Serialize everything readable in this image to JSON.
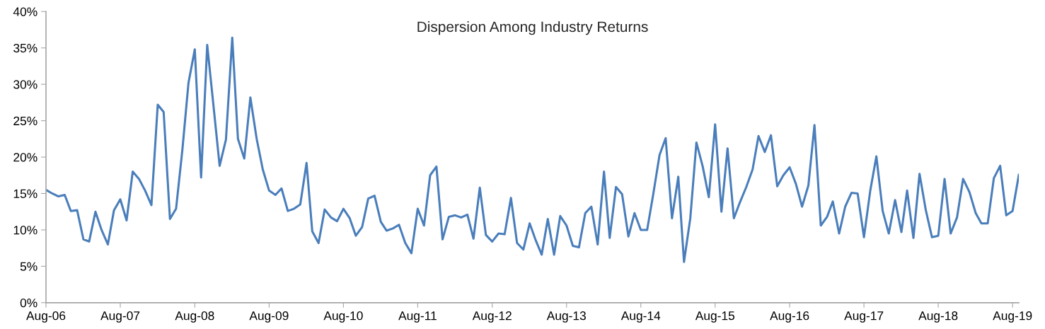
{
  "chart_data": {
    "type": "line",
    "title": "Dispersion Among Industry Returns",
    "x": [
      "2006-08",
      "2006-09",
      "2006-10",
      "2006-11",
      "2006-12",
      "2007-01",
      "2007-02",
      "2007-03",
      "2007-04",
      "2007-05",
      "2007-06",
      "2007-07",
      "2007-08",
      "2007-09",
      "2007-10",
      "2007-11",
      "2007-12",
      "2008-01",
      "2008-02",
      "2008-03",
      "2008-04",
      "2008-05",
      "2008-06",
      "2008-07",
      "2008-08",
      "2008-09",
      "2008-10",
      "2008-11",
      "2008-12",
      "2009-01",
      "2009-02",
      "2009-03",
      "2009-04",
      "2009-05",
      "2009-06",
      "2009-07",
      "2009-08",
      "2009-09",
      "2009-10",
      "2009-11",
      "2009-12",
      "2010-01",
      "2010-02",
      "2010-03",
      "2010-04",
      "2010-05",
      "2010-06",
      "2010-07",
      "2010-08",
      "2010-09",
      "2010-10",
      "2010-11",
      "2010-12",
      "2011-01",
      "2011-02",
      "2011-03",
      "2011-04",
      "2011-05",
      "2011-06",
      "2011-07",
      "2011-08",
      "2011-09",
      "2011-10",
      "2011-11",
      "2011-12",
      "2012-01",
      "2012-02",
      "2012-03",
      "2012-04",
      "2012-05",
      "2012-06",
      "2012-07",
      "2012-08",
      "2012-09",
      "2012-10",
      "2012-11",
      "2012-12",
      "2013-01",
      "2013-02",
      "2013-03",
      "2013-04",
      "2013-05",
      "2013-06",
      "2013-07",
      "2013-08",
      "2013-09",
      "2013-10",
      "2013-11",
      "2013-12",
      "2014-01",
      "2014-02",
      "2014-03",
      "2014-04",
      "2014-05",
      "2014-06",
      "2014-07",
      "2014-08",
      "2014-09",
      "2014-10",
      "2014-11",
      "2014-12",
      "2015-01",
      "2015-02",
      "2015-03",
      "2015-04",
      "2015-05",
      "2015-06",
      "2015-07",
      "2015-08",
      "2015-09",
      "2015-10",
      "2015-11",
      "2015-12",
      "2016-01",
      "2016-02",
      "2016-03",
      "2016-04",
      "2016-05",
      "2016-06",
      "2016-07",
      "2016-08",
      "2016-09",
      "2016-10",
      "2016-11",
      "2016-12",
      "2017-01",
      "2017-02",
      "2017-03",
      "2017-04",
      "2017-05",
      "2017-06",
      "2017-07",
      "2017-08",
      "2017-09",
      "2017-10",
      "2017-11",
      "2017-12",
      "2018-01",
      "2018-02",
      "2018-03",
      "2018-04",
      "2018-05",
      "2018-06",
      "2018-07",
      "2018-08",
      "2018-09",
      "2018-10",
      "2018-11",
      "2018-12",
      "2019-01",
      "2019-02",
      "2019-03",
      "2019-04",
      "2019-05",
      "2019-06",
      "2019-07",
      "2019-08",
      "2019-09"
    ],
    "series": [
      {
        "color": "#4a7ebb",
        "values": [
          15.5,
          15.0,
          14.6,
          14.8,
          12.6,
          12.7,
          8.7,
          8.4,
          12.5,
          10.0,
          8.0,
          12.7,
          14.2,
          11.3,
          18.0,
          17.0,
          15.4,
          13.4,
          27.2,
          26.2,
          11.5,
          12.9,
          21.0,
          30.2,
          34.8,
          17.2,
          35.4,
          27.0,
          18.8,
          22.4,
          36.4,
          22.5,
          19.8,
          28.2,
          22.5,
          18.3,
          15.4,
          14.8,
          15.7,
          12.6,
          12.9,
          13.5,
          19.2,
          9.8,
          8.2,
          12.8,
          11.7,
          11.2,
          12.9,
          11.6,
          9.2,
          10.4,
          14.3,
          14.7,
          11.1,
          9.9,
          10.2,
          10.7,
          8.2,
          6.8,
          12.9,
          10.6,
          17.5,
          18.7,
          8.7,
          11.8,
          12.0,
          11.7,
          12.1,
          8.8,
          15.8,
          9.3,
          8.4,
          9.5,
          9.4,
          14.4,
          8.2,
          7.3,
          10.9,
          8.7,
          6.6,
          11.5,
          6.6,
          11.9,
          10.6,
          7.8,
          7.6,
          12.3,
          13.2,
          8.0,
          18.0,
          8.9,
          15.9,
          14.9,
          9.1,
          12.3,
          10.0,
          10.0,
          14.9,
          20.3,
          22.6,
          11.6,
          17.3,
          5.6,
          11.6,
          22.0,
          18.7,
          14.5,
          24.5,
          12.5,
          21.2,
          11.6,
          13.8,
          15.9,
          18.3,
          22.9,
          20.7,
          23.0,
          16.0,
          17.5,
          18.6,
          16.3,
          13.2,
          16.1,
          24.4,
          10.6,
          11.8,
          13.9,
          9.5,
          13.2,
          15.1,
          15.0,
          9.0,
          15.4,
          20.1,
          12.6,
          9.5,
          14.1,
          9.7,
          15.4,
          8.9,
          17.7,
          12.7,
          9.0,
          9.2,
          17.0,
          9.5,
          11.7,
          17.0,
          15.2,
          12.3,
          10.9,
          10.9,
          17.1,
          18.8,
          12.0,
          12.6,
          17.6
        ]
      }
    ],
    "xlim": [
      "2006-08",
      "2019-09"
    ],
    "xticks": [
      {
        "value": "2006-08",
        "label": "Aug-06"
      },
      {
        "value": "2007-08",
        "label": "Aug-07"
      },
      {
        "value": "2008-08",
        "label": "Aug-08"
      },
      {
        "value": "2009-08",
        "label": "Aug-09"
      },
      {
        "value": "2010-08",
        "label": "Aug-10"
      },
      {
        "value": "2011-08",
        "label": "Aug-11"
      },
      {
        "value": "2012-08",
        "label": "Aug-12"
      },
      {
        "value": "2013-08",
        "label": "Aug-13"
      },
      {
        "value": "2014-08",
        "label": "Aug-14"
      },
      {
        "value": "2015-08",
        "label": "Aug-15"
      },
      {
        "value": "2016-08",
        "label": "Aug-16"
      },
      {
        "value": "2017-08",
        "label": "Aug-17"
      },
      {
        "value": "2018-08",
        "label": "Aug-18"
      },
      {
        "value": "2019-08",
        "label": "Aug-19"
      }
    ],
    "ylim": [
      0,
      40
    ],
    "yticks": [
      {
        "value": 0,
        "label": "0%"
      },
      {
        "value": 5,
        "label": "5%"
      },
      {
        "value": 10,
        "label": "10%"
      },
      {
        "value": 15,
        "label": "15%"
      },
      {
        "value": 20,
        "label": "20%"
      },
      {
        "value": 25,
        "label": "25%"
      },
      {
        "value": 30,
        "label": "30%"
      },
      {
        "value": 35,
        "label": "35%"
      },
      {
        "value": 40,
        "label": "40%"
      }
    ],
    "grid": false,
    "legend": false,
    "marker": "none",
    "line_style": "solid"
  }
}
